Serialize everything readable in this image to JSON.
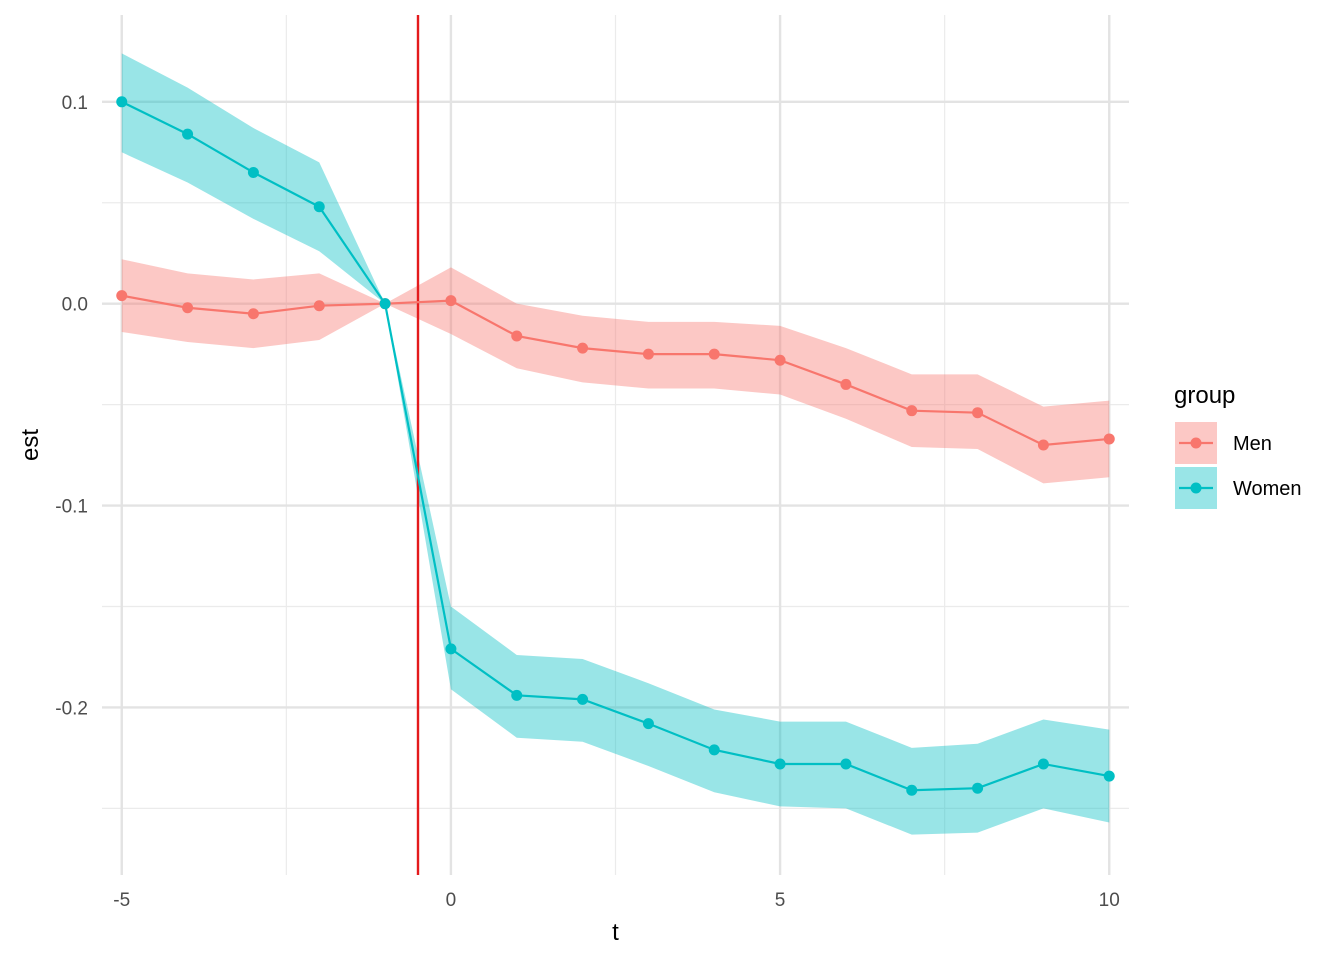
{
  "chart_data": {
    "type": "line",
    "xlabel": "t",
    "ylabel": "est",
    "xlim": [
      -5.3,
      10.3
    ],
    "ylim": [
      -0.283,
      0.143
    ],
    "x_ticks": [
      -5,
      0,
      5,
      10
    ],
    "x_tick_labels": [
      "-5",
      "0",
      "5",
      "10"
    ],
    "x_minor_grid": [
      -2.5,
      2.5,
      7.5
    ],
    "y_ticks": [
      0.1,
      0.0,
      -0.1,
      -0.2
    ],
    "y_tick_labels": [
      "0.1",
      "0.0",
      "-0.1",
      "-0.2"
    ],
    "y_minor_grid": [
      0.05,
      -0.05,
      -0.15,
      -0.25
    ],
    "grid": true,
    "vline": {
      "x": -0.5,
      "color": "#e41a1c"
    },
    "legend": {
      "title": "group",
      "position": "right"
    },
    "x": [
      -5,
      -4,
      -3,
      -2,
      -1,
      0,
      1,
      2,
      3,
      4,
      5,
      6,
      7,
      8,
      9,
      10
    ],
    "series": [
      {
        "name": "Men",
        "color": "#f8766d",
        "values": [
          0.004,
          -0.002,
          -0.005,
          -0.001,
          0.0,
          0.0015,
          -0.016,
          -0.022,
          -0.025,
          -0.025,
          -0.028,
          -0.04,
          -0.053,
          -0.054,
          -0.07,
          -0.067
        ],
        "lower": [
          -0.014,
          -0.019,
          -0.022,
          -0.018,
          0.0,
          -0.015,
          -0.032,
          -0.039,
          -0.042,
          -0.042,
          -0.045,
          -0.057,
          -0.071,
          -0.072,
          -0.089,
          -0.086
        ],
        "upper": [
          0.022,
          0.015,
          0.012,
          0.015,
          0.0,
          0.018,
          0.0,
          -0.006,
          -0.009,
          -0.009,
          -0.011,
          -0.022,
          -0.035,
          -0.035,
          -0.051,
          -0.048
        ]
      },
      {
        "name": "Women",
        "color": "#00bfc4",
        "values": [
          0.1,
          0.084,
          0.065,
          0.048,
          0.0,
          -0.171,
          -0.194,
          -0.196,
          -0.208,
          -0.221,
          -0.228,
          -0.228,
          -0.241,
          -0.24,
          -0.228,
          -0.234
        ],
        "lower": [
          0.075,
          0.06,
          0.042,
          0.026,
          0.0,
          -0.191,
          -0.215,
          -0.217,
          -0.229,
          -0.242,
          -0.249,
          -0.25,
          -0.263,
          -0.262,
          -0.25,
          -0.257
        ],
        "upper": [
          0.124,
          0.107,
          0.087,
          0.07,
          0.0,
          -0.15,
          -0.174,
          -0.176,
          -0.188,
          -0.201,
          -0.207,
          -0.207,
          -0.22,
          -0.218,
          -0.206,
          -0.211
        ]
      }
    ]
  }
}
